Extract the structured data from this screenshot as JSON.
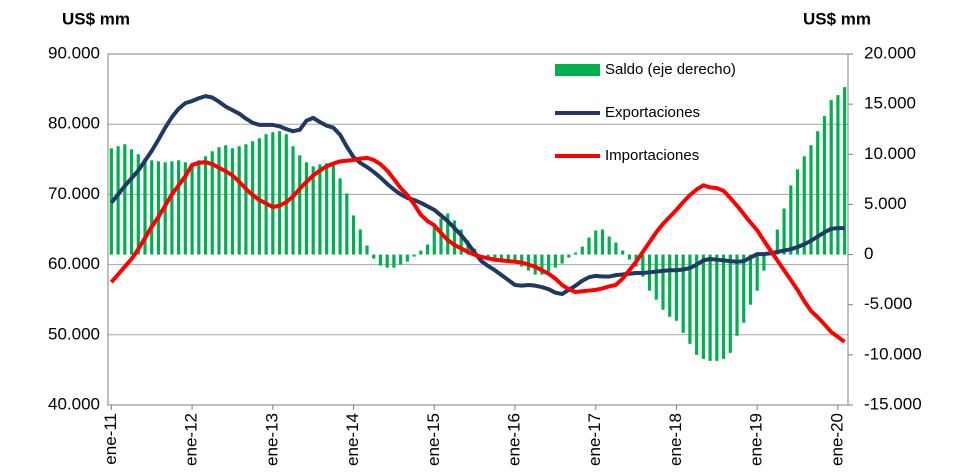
{
  "chart_data": {
    "type": "bar-line",
    "ylabel": "US$ mm",
    "y2label": "US$ mm",
    "categories": [
      "ene-11",
      null,
      null,
      null,
      null,
      null,
      null,
      null,
      null,
      null,
      null,
      null,
      "ene-12",
      null,
      null,
      null,
      null,
      null,
      null,
      null,
      null,
      null,
      null,
      null,
      "ene-13",
      null,
      null,
      null,
      null,
      null,
      null,
      null,
      null,
      null,
      null,
      null,
      "ene-14",
      null,
      null,
      null,
      null,
      null,
      null,
      null,
      null,
      null,
      null,
      null,
      "ene-15",
      null,
      null,
      null,
      null,
      null,
      null,
      null,
      null,
      null,
      null,
      null,
      "ene-16",
      null,
      null,
      null,
      null,
      null,
      null,
      null,
      null,
      null,
      null,
      null,
      "ene-17",
      null,
      null,
      null,
      null,
      null,
      null,
      null,
      null,
      null,
      null,
      null,
      "ene-18",
      null,
      null,
      null,
      null,
      null,
      null,
      null,
      null,
      null,
      null,
      null,
      "ene-19",
      null,
      null,
      null,
      null,
      null,
      null,
      null,
      null,
      null,
      null,
      null,
      "ene-20",
      null
    ],
    "series": [
      {
        "name": "Saldo (eje derecho)",
        "kind": "bar",
        "axis": "y2",
        "color": "#00b050",
        "values": [
          10600,
          10800,
          11000,
          10500,
          10000,
          9600,
          9400,
          9300,
          9200,
          9300,
          9400,
          9200,
          8900,
          9400,
          9800,
          10300,
          10700,
          10900,
          10600,
          10800,
          11000,
          11300,
          11600,
          12000,
          12200,
          12300,
          12000,
          10800,
          9900,
          9200,
          8800,
          9000,
          9100,
          8900,
          7600,
          6100,
          3900,
          2500,
          900,
          -400,
          -1100,
          -1300,
          -1300,
          -1000,
          -700,
          -200,
          400,
          1000,
          2900,
          3600,
          4100,
          3400,
          2500,
          1400,
          600,
          0,
          -500,
          -700,
          -800,
          -800,
          -800,
          -1200,
          -1600,
          -2000,
          -2000,
          -1700,
          -1300,
          -900,
          -300,
          200,
          800,
          1700,
          2400,
          2500,
          1800,
          1200,
          400,
          -500,
          -1200,
          -2200,
          -3600,
          -4500,
          -5500,
          -6200,
          -6600,
          -7800,
          -8900,
          -10000,
          -10400,
          -10600,
          -10600,
          -10400,
          -9800,
          -8100,
          -6800,
          -5000,
          -3600,
          -1600,
          400,
          2500,
          4600,
          6900,
          8500,
          9800,
          10900,
          12300,
          13800,
          15400,
          15900,
          16700
        ]
      },
      {
        "name": "Exportaciones",
        "kind": "line",
        "axis": "y",
        "color": "#1f3864",
        "values": [
          68800,
          70000,
          71200,
          72300,
          73400,
          74800,
          76200,
          77800,
          79500,
          81000,
          82200,
          83000,
          83300,
          83700,
          84000,
          83800,
          83200,
          82500,
          82000,
          81500,
          80800,
          80200,
          79900,
          79900,
          79900,
          79700,
          79300,
          79000,
          79200,
          80500,
          80900,
          80300,
          79800,
          79500,
          78500,
          76800,
          75300,
          74500,
          73900,
          73200,
          72400,
          71500,
          70700,
          70000,
          69500,
          69200,
          68800,
          68300,
          67800,
          67000,
          66200,
          65200,
          64200,
          63000,
          61700,
          60500,
          59800,
          59200,
          58500,
          57800,
          57100,
          57000,
          57100,
          57000,
          56800,
          56500,
          56000,
          55800,
          56400,
          57000,
          57700,
          58200,
          58400,
          58300,
          58300,
          58500,
          58600,
          58700,
          58800,
          58800,
          58900,
          59000,
          59100,
          59200,
          59200,
          59300,
          59500,
          60000,
          60600,
          60800,
          60700,
          60600,
          60500,
          60400,
          60500,
          61000,
          61500,
          61500,
          61600,
          61800,
          62000,
          62200,
          62500,
          62900,
          63400,
          64000,
          64600,
          65100,
          65200,
          65200
        ]
      },
      {
        "name": "Importaciones",
        "kind": "line",
        "axis": "y",
        "color": "#ff0000",
        "values": [
          57500,
          58600,
          59700,
          60800,
          62200,
          63800,
          65400,
          66800,
          68400,
          70000,
          71300,
          72600,
          74200,
          74500,
          74600,
          74300,
          73800,
          73300,
          72700,
          71800,
          70800,
          69900,
          69200,
          68700,
          68200,
          68400,
          68900,
          69700,
          70800,
          71800,
          72700,
          73400,
          74000,
          74400,
          74700,
          74800,
          74900,
          75100,
          75200,
          74900,
          74300,
          73400,
          72200,
          70900,
          69900,
          68600,
          67100,
          66200,
          65600,
          64500,
          63500,
          62800,
          62300,
          61800,
          61400,
          61100,
          60900,
          60700,
          60600,
          60500,
          60400,
          60300,
          60000,
          59700,
          59200,
          58700,
          58000,
          57100,
          56500,
          56100,
          56200,
          56300,
          56400,
          56600,
          56900,
          57100,
          58000,
          59200,
          60400,
          61800,
          63200,
          64600,
          65800,
          66800,
          67800,
          68900,
          69900,
          70700,
          71300,
          71000,
          70900,
          70500,
          69500,
          68400,
          67200,
          66000,
          64900,
          63400,
          62000,
          60600,
          59200,
          57800,
          56400,
          54800,
          53400,
          52500,
          51500,
          50400,
          49700,
          49000
        ]
      }
    ],
    "ylim": [
      40000,
      90000
    ],
    "yticks": [
      {
        "value": 40000,
        "label": "40.000"
      },
      {
        "value": 50000,
        "label": "50.000"
      },
      {
        "value": 60000,
        "label": "60.000"
      },
      {
        "value": 70000,
        "label": "70.000"
      },
      {
        "value": 80000,
        "label": "80.000"
      },
      {
        "value": 90000,
        "label": "90.000"
      }
    ],
    "y2lim": [
      -15000,
      20000
    ],
    "y2ticks": [
      {
        "value": -15000,
        "label": "-15.000"
      },
      {
        "value": -10000,
        "label": "-10.000"
      },
      {
        "value": -5000,
        "label": "-5.000"
      },
      0,
      {
        "value": 5000,
        "label": "5.000"
      },
      {
        "value": 10000,
        "label": "10.000"
      },
      {
        "value": 15000,
        "label": "15.000"
      },
      {
        "value": 20000,
        "label": "20.000"
      }
    ],
    "grid": true,
    "legend": "upper right"
  }
}
